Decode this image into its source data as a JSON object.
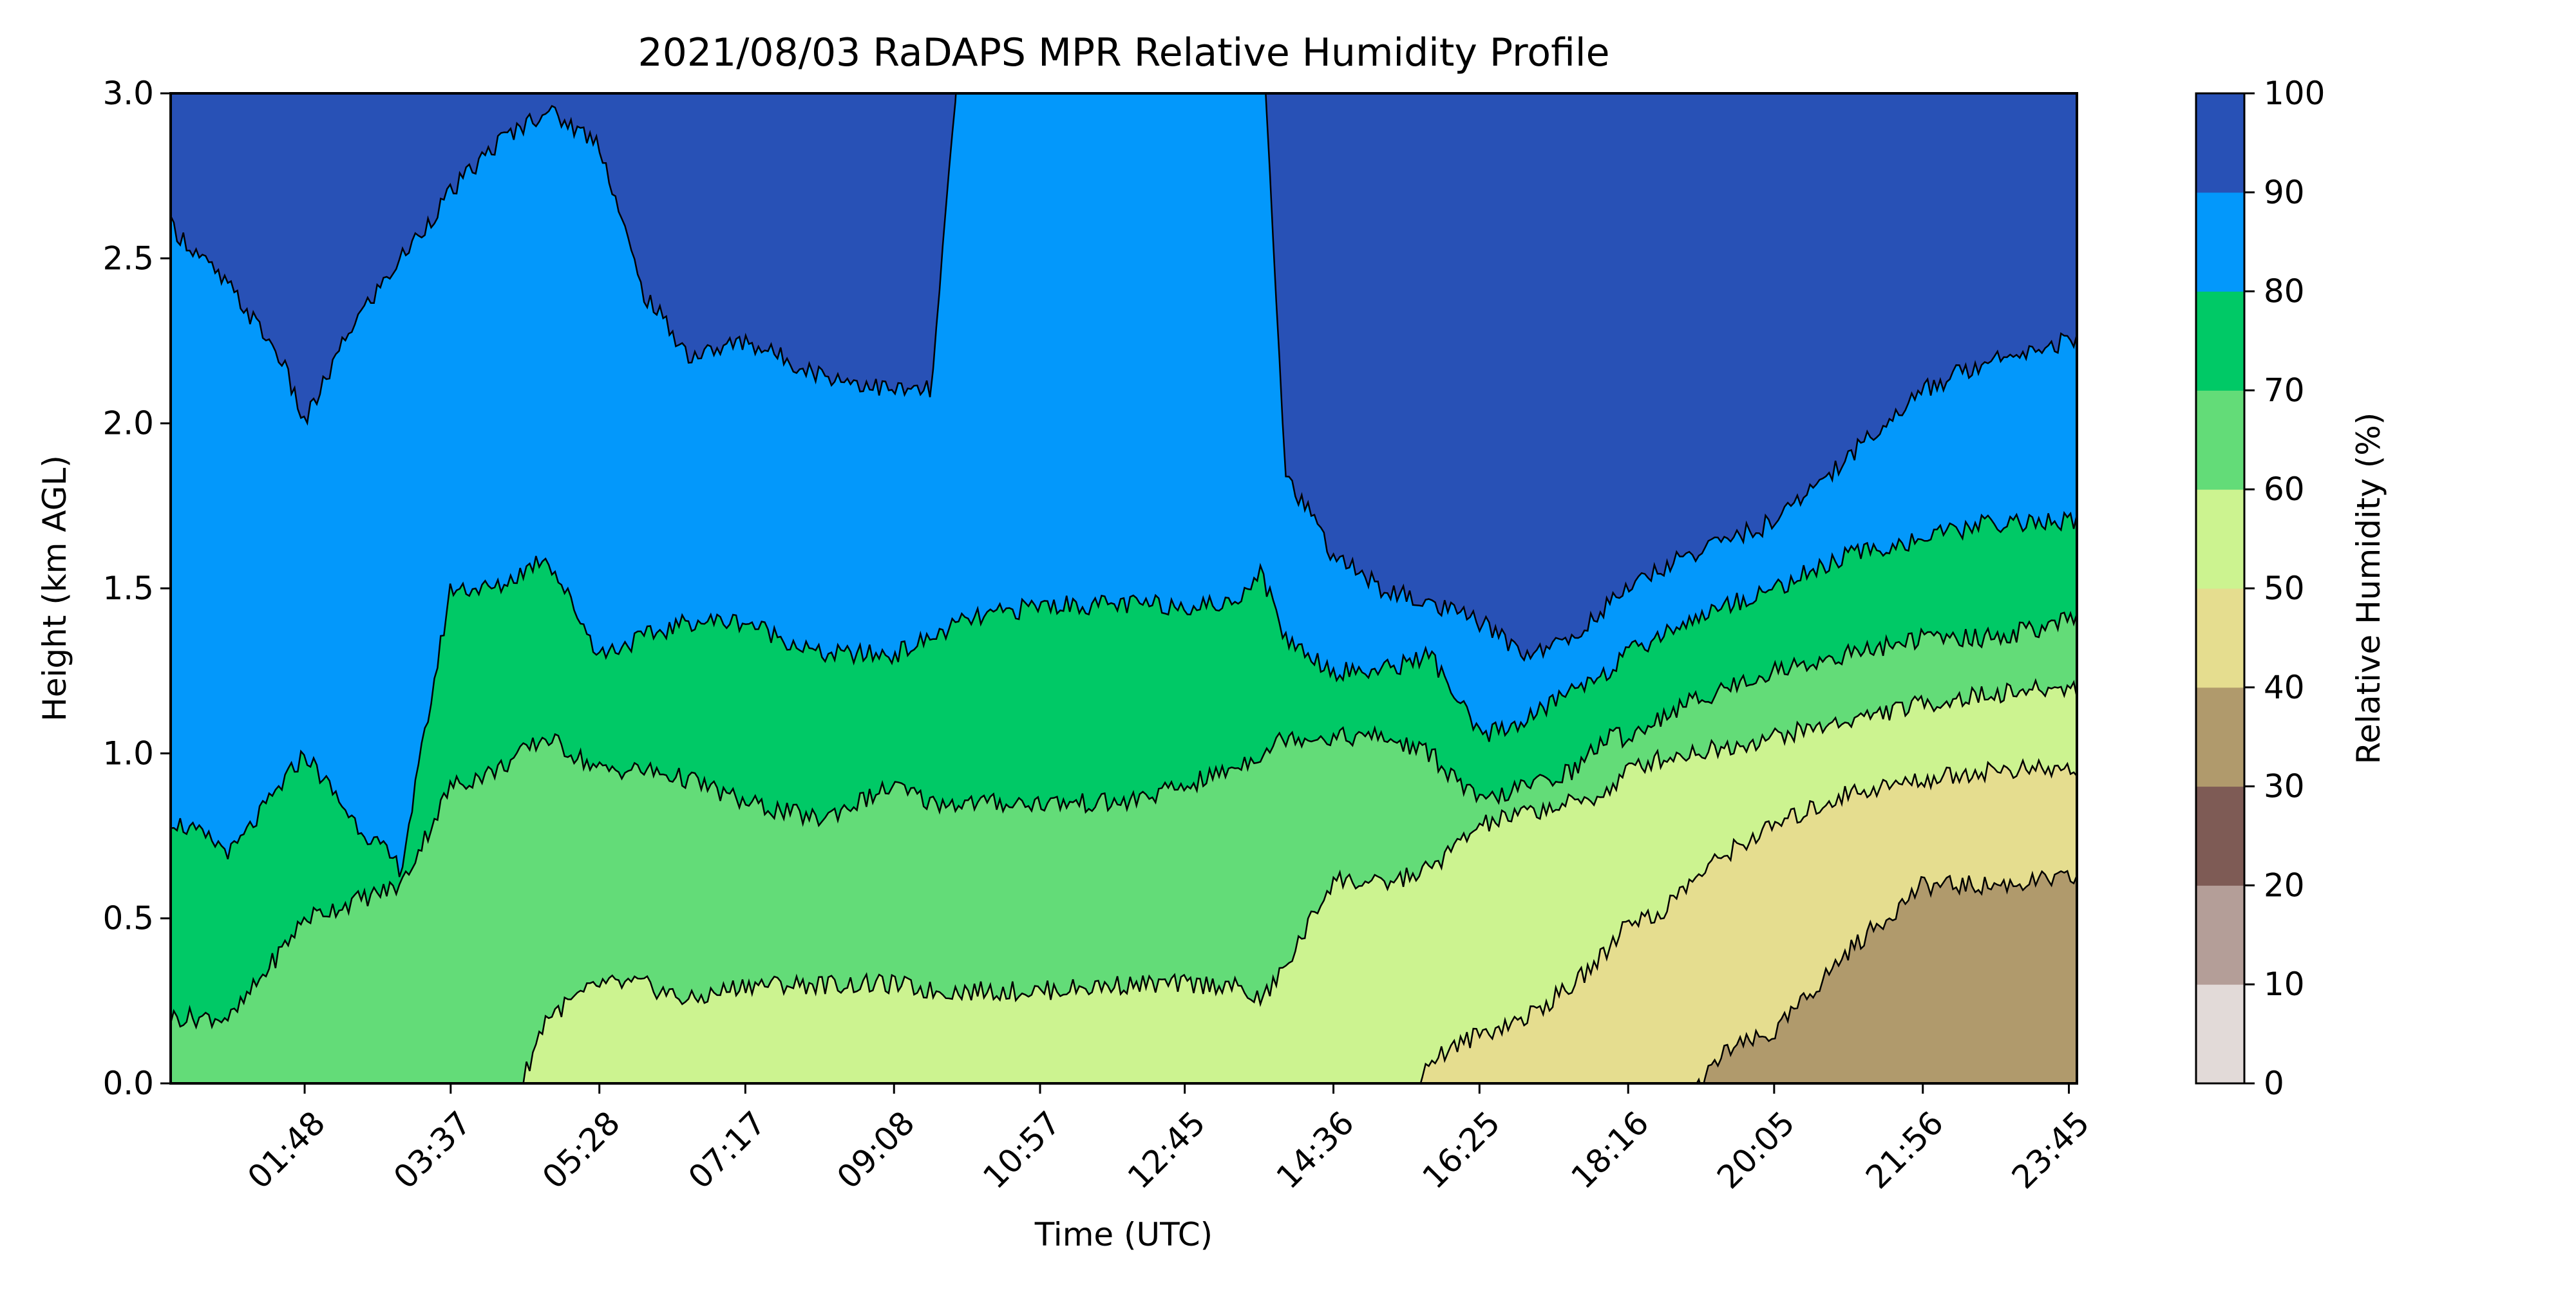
{
  "chart_data": {
    "type": "heatmap",
    "subtype": "filled-contour",
    "title": "2021/08/03 RaDAPS MPR Relative Humidity Profile",
    "xlabel": "Time (UTC)",
    "ylabel": "Height (km AGL)",
    "colorbar_label": "Relative Humidity (%)",
    "x_tick_labels": [
      "01:48",
      "03:37",
      "05:28",
      "07:17",
      "09:08",
      "10:57",
      "12:45",
      "14:36",
      "16:25",
      "18:16",
      "20:05",
      "21:56",
      "23:45"
    ],
    "x_tick_hours": [
      1.8,
      3.617,
      5.467,
      7.283,
      9.133,
      10.95,
      12.75,
      14.6,
      16.417,
      18.267,
      20.083,
      21.933,
      23.75
    ],
    "x_range_hours": [
      0.133,
      23.85
    ],
    "y_ticks": [
      0.0,
      0.5,
      1.0,
      1.5,
      2.0,
      2.5,
      3.0
    ],
    "y_tick_labels": [
      "0.0",
      "0.5",
      "1.0",
      "1.5",
      "2.0",
      "2.5",
      "3.0"
    ],
    "ylim": [
      0.0,
      3.0
    ],
    "colorbar_ticks": [
      "0",
      "10",
      "20",
      "30",
      "40",
      "50",
      "60",
      "70",
      "80",
      "90",
      "100"
    ],
    "levels": [
      0,
      10,
      20,
      30,
      40,
      50,
      60,
      70,
      80,
      90,
      100
    ],
    "level_colors": [
      "#e2dad8",
      "#b49e98",
      "#7e5b55",
      "#b09a6c",
      "#e5dd8f",
      "#ccf390",
      "#63dc78",
      "#00c966",
      "#0398fb",
      "#2851b6"
    ],
    "rh_boundaries": {
      "time_hours": [
        0.133,
        0.9,
        1.5,
        1.8,
        2.4,
        3.0,
        3.617,
        4.2,
        4.8,
        5.467,
        6.0,
        6.6,
        7.283,
        8.2,
        9.133,
        9.6,
        10.0,
        10.95,
        12.0,
        12.75,
        13.3,
        13.7,
        14.0,
        14.6,
        15.2,
        15.8,
        16.417,
        17.0,
        17.6,
        18.0,
        18.267,
        18.6,
        19.0,
        19.5,
        20.083,
        21.0,
        21.933,
        22.8,
        23.75,
        23.85
      ],
      "h30": [
        -0.2,
        -0.2,
        -0.2,
        -0.2,
        -0.2,
        -0.2,
        -0.2,
        -0.2,
        -0.2,
        -0.2,
        -0.2,
        -0.2,
        -0.2,
        -0.2,
        -0.2,
        -0.2,
        -0.2,
        -0.2,
        -0.2,
        -0.2,
        -0.2,
        -0.2,
        -0.2,
        -0.2,
        -0.2,
        -0.2,
        -0.2,
        -0.2,
        -0.2,
        -0.2,
        -0.2,
        -0.2,
        -0.05,
        0.1,
        0.15,
        0.4,
        0.6,
        0.6,
        0.62,
        0.62
      ],
      "h40": [
        3.3,
        3.3,
        3.3,
        3.3,
        3.3,
        3.3,
        3.3,
        3.3,
        3.3,
        3.3,
        3.3,
        3.3,
        3.3,
        3.3,
        3.3,
        3.3,
        3.3,
        3.3,
        3.3,
        3.3,
        3.3,
        3.3,
        3.3,
        3.3,
        3.3,
        3.3,
        3.3,
        3.3,
        3.3,
        3.3,
        3.3,
        3.3,
        3.3,
        3.3,
        3.3,
        3.3,
        3.3,
        3.3,
        3.3,
        3.3
      ],
      "h50": [
        -0.2,
        -0.2,
        -0.2,
        -0.2,
        -0.2,
        -0.2,
        -0.2,
        -0.2,
        -0.2,
        -0.2,
        -0.2,
        -0.2,
        -0.2,
        -0.2,
        -0.2,
        -0.2,
        -0.2,
        -0.2,
        -0.2,
        -0.2,
        -0.2,
        -0.2,
        -0.2,
        -0.2,
        -0.2,
        0.07,
        0.15,
        0.2,
        0.3,
        0.4,
        0.5,
        0.5,
        0.6,
        0.7,
        0.78,
        0.88,
        0.92,
        0.95,
        0.95,
        0.95
      ],
      "h60": [
        -0.2,
        -0.2,
        -0.2,
        -0.2,
        -0.2,
        -0.2,
        -0.2,
        -0.2,
        0.2,
        0.3,
        0.3,
        0.25,
        0.3,
        0.3,
        0.3,
        0.28,
        0.28,
        0.28,
        0.3,
        0.3,
        0.3,
        0.25,
        0.35,
        0.62,
        0.6,
        0.65,
        0.78,
        0.82,
        0.85,
        0.88,
        0.95,
        0.98,
        1.0,
        1.02,
        1.05,
        1.1,
        1.15,
        1.18,
        1.2,
        1.2
      ],
      "h70": [
        0.2,
        0.2,
        0.4,
        0.5,
        0.55,
        0.6,
        0.9,
        0.95,
        1.05,
        0.95,
        0.95,
        0.92,
        0.85,
        0.8,
        0.9,
        0.85,
        0.85,
        0.85,
        0.85,
        0.9,
        0.95,
        1.0,
        1.05,
        1.05,
        1.05,
        1.0,
        0.85,
        0.9,
        0.95,
        1.05,
        1.05,
        1.1,
        1.15,
        1.2,
        1.25,
        1.3,
        1.35,
        1.35,
        1.4,
        1.4
      ],
      "h80": [
        0.8,
        0.7,
        0.9,
        1.0,
        0.8,
        0.65,
        1.5,
        1.5,
        1.6,
        1.3,
        1.35,
        1.4,
        1.4,
        1.3,
        1.3,
        1.35,
        1.4,
        1.45,
        1.45,
        1.45,
        1.45,
        1.55,
        1.35,
        1.25,
        1.25,
        1.3,
        1.05,
        1.1,
        1.2,
        1.25,
        1.3,
        1.35,
        1.4,
        1.45,
        1.5,
        1.6,
        1.65,
        1.7,
        1.7,
        1.7
      ],
      "h90": [
        2.6,
        2.4,
        2.2,
        2.0,
        2.3,
        2.5,
        2.7,
        2.85,
        2.95,
        2.85,
        2.4,
        2.2,
        2.25,
        2.15,
        2.1,
        2.1,
        3.3,
        3.3,
        3.3,
        3.3,
        3.3,
        3.3,
        1.85,
        1.6,
        1.5,
        1.45,
        1.4,
        1.3,
        1.35,
        1.45,
        1.5,
        1.55,
        1.6,
        1.65,
        1.7,
        1.9,
        2.1,
        2.2,
        2.25,
        2.25
      ]
    }
  }
}
